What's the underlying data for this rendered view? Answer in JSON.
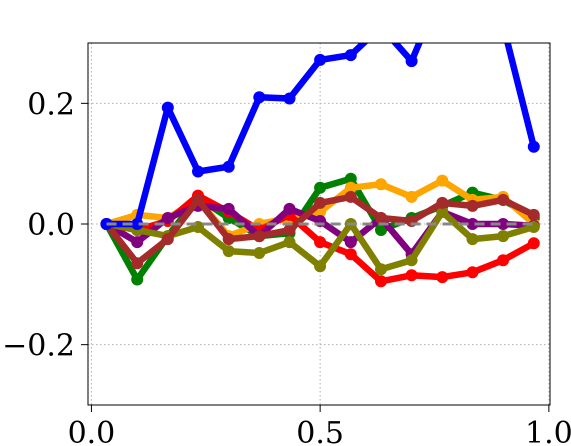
{
  "chart_data": {
    "type": "line",
    "title": "",
    "xlabel": "",
    "ylabel": "",
    "xlim": [
      -0.0075,
      1.0025
    ],
    "ylim": [
      -0.3,
      0.3
    ],
    "grid": true,
    "x_ticks": [
      0.0,
      0.5,
      1.0
    ],
    "x_tick_labels": [
      "0.0",
      "0.5",
      "1.0"
    ],
    "y_ticks": [
      -0.2,
      0.0,
      0.2
    ],
    "y_tick_labels": [
      "−0.2",
      "0.0",
      "0.2"
    ],
    "x": [
      0.033,
      0.1,
      0.167,
      0.233,
      0.3,
      0.367,
      0.433,
      0.5,
      0.567,
      0.633,
      0.7,
      0.767,
      0.833,
      0.9,
      0.967
    ],
    "reference_line": {
      "y": 0.0,
      "color": "#888888",
      "style": "dashed"
    },
    "series": [
      {
        "color": "#008000",
        "values": [
          0.0,
          -0.092,
          -0.02,
          0.044,
          0.01,
          -0.02,
          -0.015,
          0.06,
          0.075,
          -0.01,
          0.01,
          0.03,
          0.052,
          0.04,
          0.01
        ]
      },
      {
        "color": "#FFA500",
        "values": [
          0.0,
          0.015,
          0.01,
          0.04,
          -0.02,
          0.0,
          0.01,
          0.02,
          0.06,
          0.066,
          0.045,
          0.072,
          0.04,
          0.045,
          0.0
        ]
      },
      {
        "color": "#FF0000",
        "values": [
          0.0,
          -0.01,
          0.005,
          0.047,
          0.02,
          -0.01,
          0.015,
          -0.03,
          -0.05,
          -0.095,
          -0.085,
          -0.088,
          -0.08,
          -0.06,
          -0.032
        ]
      },
      {
        "color": "#800080",
        "values": [
          0.0,
          -0.03,
          0.01,
          0.03,
          0.025,
          -0.02,
          0.025,
          0.005,
          -0.03,
          0.01,
          -0.05,
          0.02,
          0.0,
          0.0,
          -0.003
        ]
      },
      {
        "color": "#808000",
        "values": [
          0.0,
          -0.01,
          -0.02,
          -0.005,
          -0.045,
          -0.048,
          -0.03,
          -0.07,
          0.0,
          -0.075,
          -0.06,
          0.02,
          -0.025,
          -0.02,
          -0.005
        ]
      },
      {
        "color": "#A52A2A",
        "values": [
          0.0,
          -0.065,
          -0.025,
          0.04,
          -0.025,
          -0.02,
          -0.01,
          0.035,
          0.045,
          0.01,
          0.005,
          0.035,
          0.03,
          0.04,
          0.015
        ]
      },
      {
        "color": "#0000FF",
        "values": [
          0.0,
          0.0,
          0.193,
          0.087,
          0.095,
          0.21,
          0.208,
          0.272,
          0.28,
          0.327,
          0.27,
          0.39,
          0.39,
          0.33,
          0.128
        ]
      }
    ]
  }
}
